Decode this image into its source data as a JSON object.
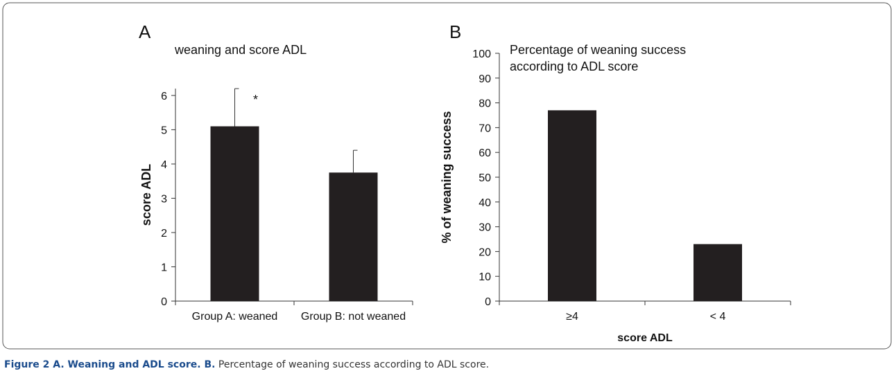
{
  "chart_data": [
    {
      "type": "bar",
      "panel": "A",
      "title": [
        "weaning  and score ADL"
      ],
      "ylabel": "score ADL",
      "categories": [
        "Group A: weaned",
        "Group B: not weaned"
      ],
      "values": [
        5.1,
        3.75
      ],
      "errors": [
        1.1,
        0.65
      ],
      "color": "#231f20",
      "ylim": [
        0,
        6.2
      ],
      "yticks": [
        0,
        1,
        2,
        3,
        4,
        5,
        6
      ],
      "annotation": "*"
    },
    {
      "type": "bar",
      "panel": "B",
      "title": [
        "Percentage of weaning success",
        "according to ADL score"
      ],
      "ylabel": "% of weaning success",
      "xlabel": "score ADL",
      "categories": [
        "≥4",
        "< 4"
      ],
      "values": [
        77,
        23
      ],
      "color": "#231f20",
      "ylim": [
        0,
        100
      ],
      "yticks": [
        0,
        10,
        20,
        30,
        40,
        50,
        60,
        70,
        80,
        90,
        100
      ]
    }
  ],
  "caption": {
    "bold": "Figure 2 A. Weaning and ADL score. B.",
    "text": "Percentage of weaning success according to ADL score."
  }
}
